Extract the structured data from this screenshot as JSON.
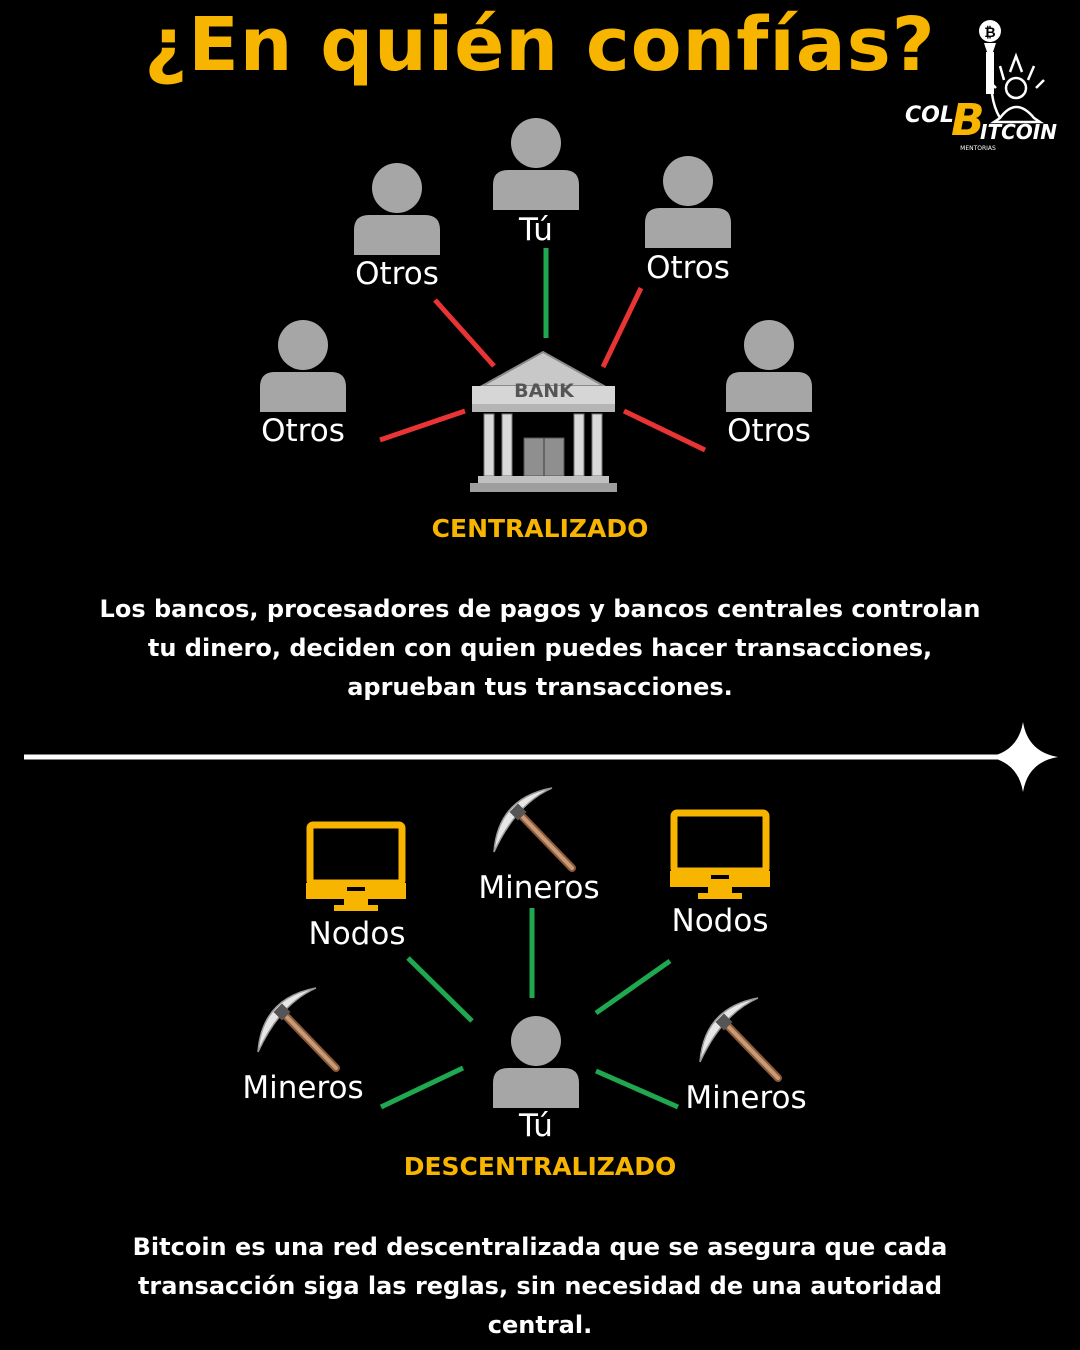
{
  "title": "¿En quién confías?",
  "logo": {
    "left_text": "COL",
    "coin_letter": "B",
    "right_text": "ITCOIN",
    "sub_text": "MENTORIAS",
    "icon": "statue-of-liberty-bitcoin-torch-icon"
  },
  "centralized": {
    "hub_label": "BANK",
    "hub_icon": "bank-building-icon",
    "nodes": [
      {
        "label": "Tú",
        "icon": "user-icon",
        "link_color": "#1fa84f"
      },
      {
        "label": "Otros",
        "icon": "user-icon",
        "link_color": "#e83434"
      },
      {
        "label": "Otros",
        "icon": "user-icon",
        "link_color": "#e83434"
      },
      {
        "label": "Otros",
        "icon": "user-icon",
        "link_color": "#e83434"
      },
      {
        "label": "Otros",
        "icon": "user-icon",
        "link_color": "#e83434"
      }
    ],
    "section_title": "CENTRALIZADO",
    "description": "Los bancos, procesadores de pagos y bancos centrales controlan tu dinero, deciden con quien puedes hacer transacciones, aprueban tus transacciones."
  },
  "decentralized": {
    "hub_label": "Tú",
    "hub_icon": "user-icon",
    "nodes": [
      {
        "label": "Mineros",
        "icon": "pickaxe-icon",
        "link_color": "#1fa84f"
      },
      {
        "label": "Nodos",
        "icon": "monitor-icon",
        "link_color": "#1fa84f"
      },
      {
        "label": "Nodos",
        "icon": "monitor-icon",
        "link_color": "#1fa84f"
      },
      {
        "label": "Mineros",
        "icon": "pickaxe-icon",
        "link_color": "#1fa84f"
      },
      {
        "label": "Mineros",
        "icon": "pickaxe-icon",
        "link_color": "#1fa84f"
      }
    ],
    "section_title": "DESCENTRALIZADO",
    "description": "Bitcoin es una red descentralizada que se asegura que cada transacción siga las reglas, sin necesidad de una autoridad central."
  },
  "colors": {
    "accent": "#f7b500",
    "positive_link": "#1fa84f",
    "negative_link": "#e83434",
    "person_icon": "#a6a6a6",
    "monitor_icon": "#f7b500"
  },
  "divider_icon": "four-point-star-icon"
}
